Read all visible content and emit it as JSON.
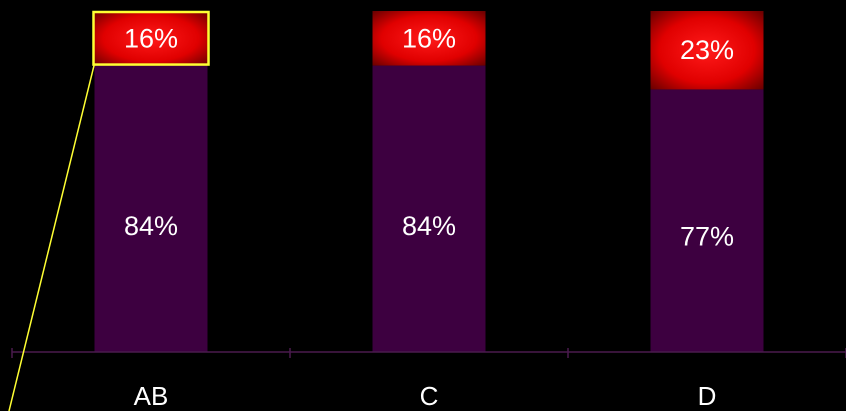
{
  "chart_data": {
    "type": "bar",
    "stacked": true,
    "normalized": true,
    "categories": [
      "AB",
      "C",
      "D"
    ],
    "series": [
      {
        "values": [
          84,
          84,
          77
        ],
        "labels": [
          "84%",
          "84%",
          "77%"
        ],
        "color": "#3d0040"
      },
      {
        "values": [
          16,
          16,
          23
        ],
        "labels": [
          "16%",
          "16%",
          "23%"
        ],
        "color": "#ff0000"
      }
    ],
    "ylim": [
      0,
      100
    ],
    "grid": false,
    "legend": "none",
    "highlight": {
      "category": "AB",
      "series": 1,
      "color": "#ffff33"
    },
    "colors": {
      "background": "#000000",
      "axis": "#4a1a4e",
      "label_text": "#ffffff",
      "segment_top_glow": "#7a0000"
    }
  }
}
